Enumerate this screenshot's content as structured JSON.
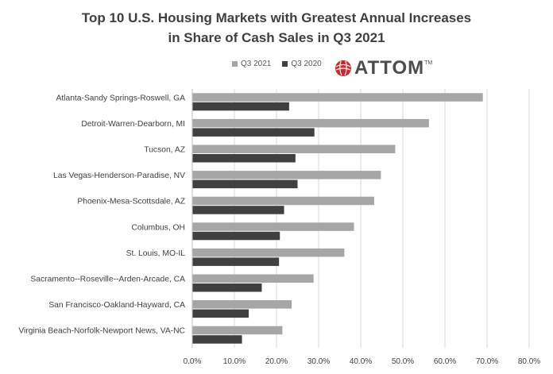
{
  "title": {
    "line1": "Top 10 U.S. Housing Markets with Greatest Annual Increases",
    "line2": "in Share of Cash Sales in Q3 2021"
  },
  "logo": {
    "text": "ATTOM",
    "tm": "TM",
    "color": "#d8232a"
  },
  "colors": {
    "q3_2021": "#a6a6a6",
    "q3_2020": "#404040",
    "grid": "#d9d9d9",
    "text": "#404040"
  },
  "chart_data": {
    "type": "bar",
    "orientation": "horizontal",
    "title": "Top 10 U.S. Housing Markets with Greatest Annual Increases in Share of Cash Sales in Q3 2021",
    "xlim": [
      0,
      80
    ],
    "ticks": [
      "0.0%",
      "10.0%",
      "20.0%",
      "30.0%",
      "40.0%",
      "50.0%",
      "60.0%",
      "70.0%",
      "80.0%"
    ],
    "categories": [
      "Atlanta-Sandy Springs-Roswell, GA",
      "Detroit-Warren-Dearborn, MI",
      "Tucson, AZ",
      "Las Vegas-Henderson-Paradise, NV",
      "Phoenix-Mesa-Scottsdale, AZ",
      "Columbus, OH",
      "St. Louis, MO-IL",
      "Sacramento--Roseville--Arden-Arcade, CA",
      "San Francisco-Oakland-Hayward, CA",
      "Virginia Beach-Norfolk-Newport News, VA-NC"
    ],
    "series": [
      {
        "name": "Q3 2021",
        "values": [
          69.0,
          56.2,
          48.2,
          44.8,
          43.2,
          38.4,
          36.1,
          28.8,
          23.6,
          21.4
        ]
      },
      {
        "name": "Q3 2020",
        "values": [
          23.0,
          29.0,
          24.5,
          25.0,
          21.8,
          20.8,
          20.6,
          16.5,
          13.4,
          11.8
        ]
      }
    ],
    "legend": "top"
  }
}
